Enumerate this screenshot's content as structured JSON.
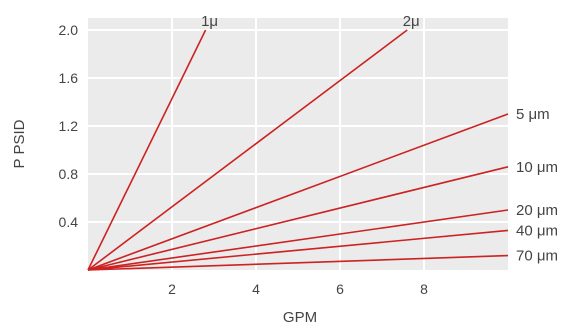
{
  "chart_data": {
    "type": "line",
    "title": "",
    "xlabel": "GPM",
    "ylabel": "P PSID",
    "xlim": [
      0,
      10
    ],
    "ylim": [
      0,
      2.0
    ],
    "x_ticks": [
      2,
      4,
      6,
      8
    ],
    "x_tick_labels": [
      "2",
      "4",
      "6",
      "8"
    ],
    "y_ticks": [
      0.4,
      0.8,
      1.2,
      1.6,
      2.0
    ],
    "y_tick_labels": [
      "0.4",
      "0.8",
      "1.2",
      "1.6",
      "2.0"
    ],
    "grid": true,
    "series_color": "#cc2222",
    "plot_background": "#ebebeb",
    "series": [
      {
        "name": "1μ",
        "x": [
          0,
          2.8
        ],
        "y": [
          0,
          2.0
        ]
      },
      {
        "name": "2μ",
        "x": [
          0,
          7.6
        ],
        "y": [
          0,
          2.0
        ]
      },
      {
        "name": "5 μm",
        "x": [
          0,
          10.0
        ],
        "y": [
          0,
          1.3
        ]
      },
      {
        "name": "10 μm",
        "x": [
          0,
          10.0
        ],
        "y": [
          0,
          0.86
        ]
      },
      {
        "name": "20 μm",
        "x": [
          0,
          10.0
        ],
        "y": [
          0,
          0.5
        ]
      },
      {
        "name": "40 μm",
        "x": [
          0,
          10.0
        ],
        "y": [
          0,
          0.33
        ]
      },
      {
        "name": "70 μm",
        "x": [
          0,
          10.0
        ],
        "y": [
          0,
          0.12
        ]
      }
    ]
  }
}
